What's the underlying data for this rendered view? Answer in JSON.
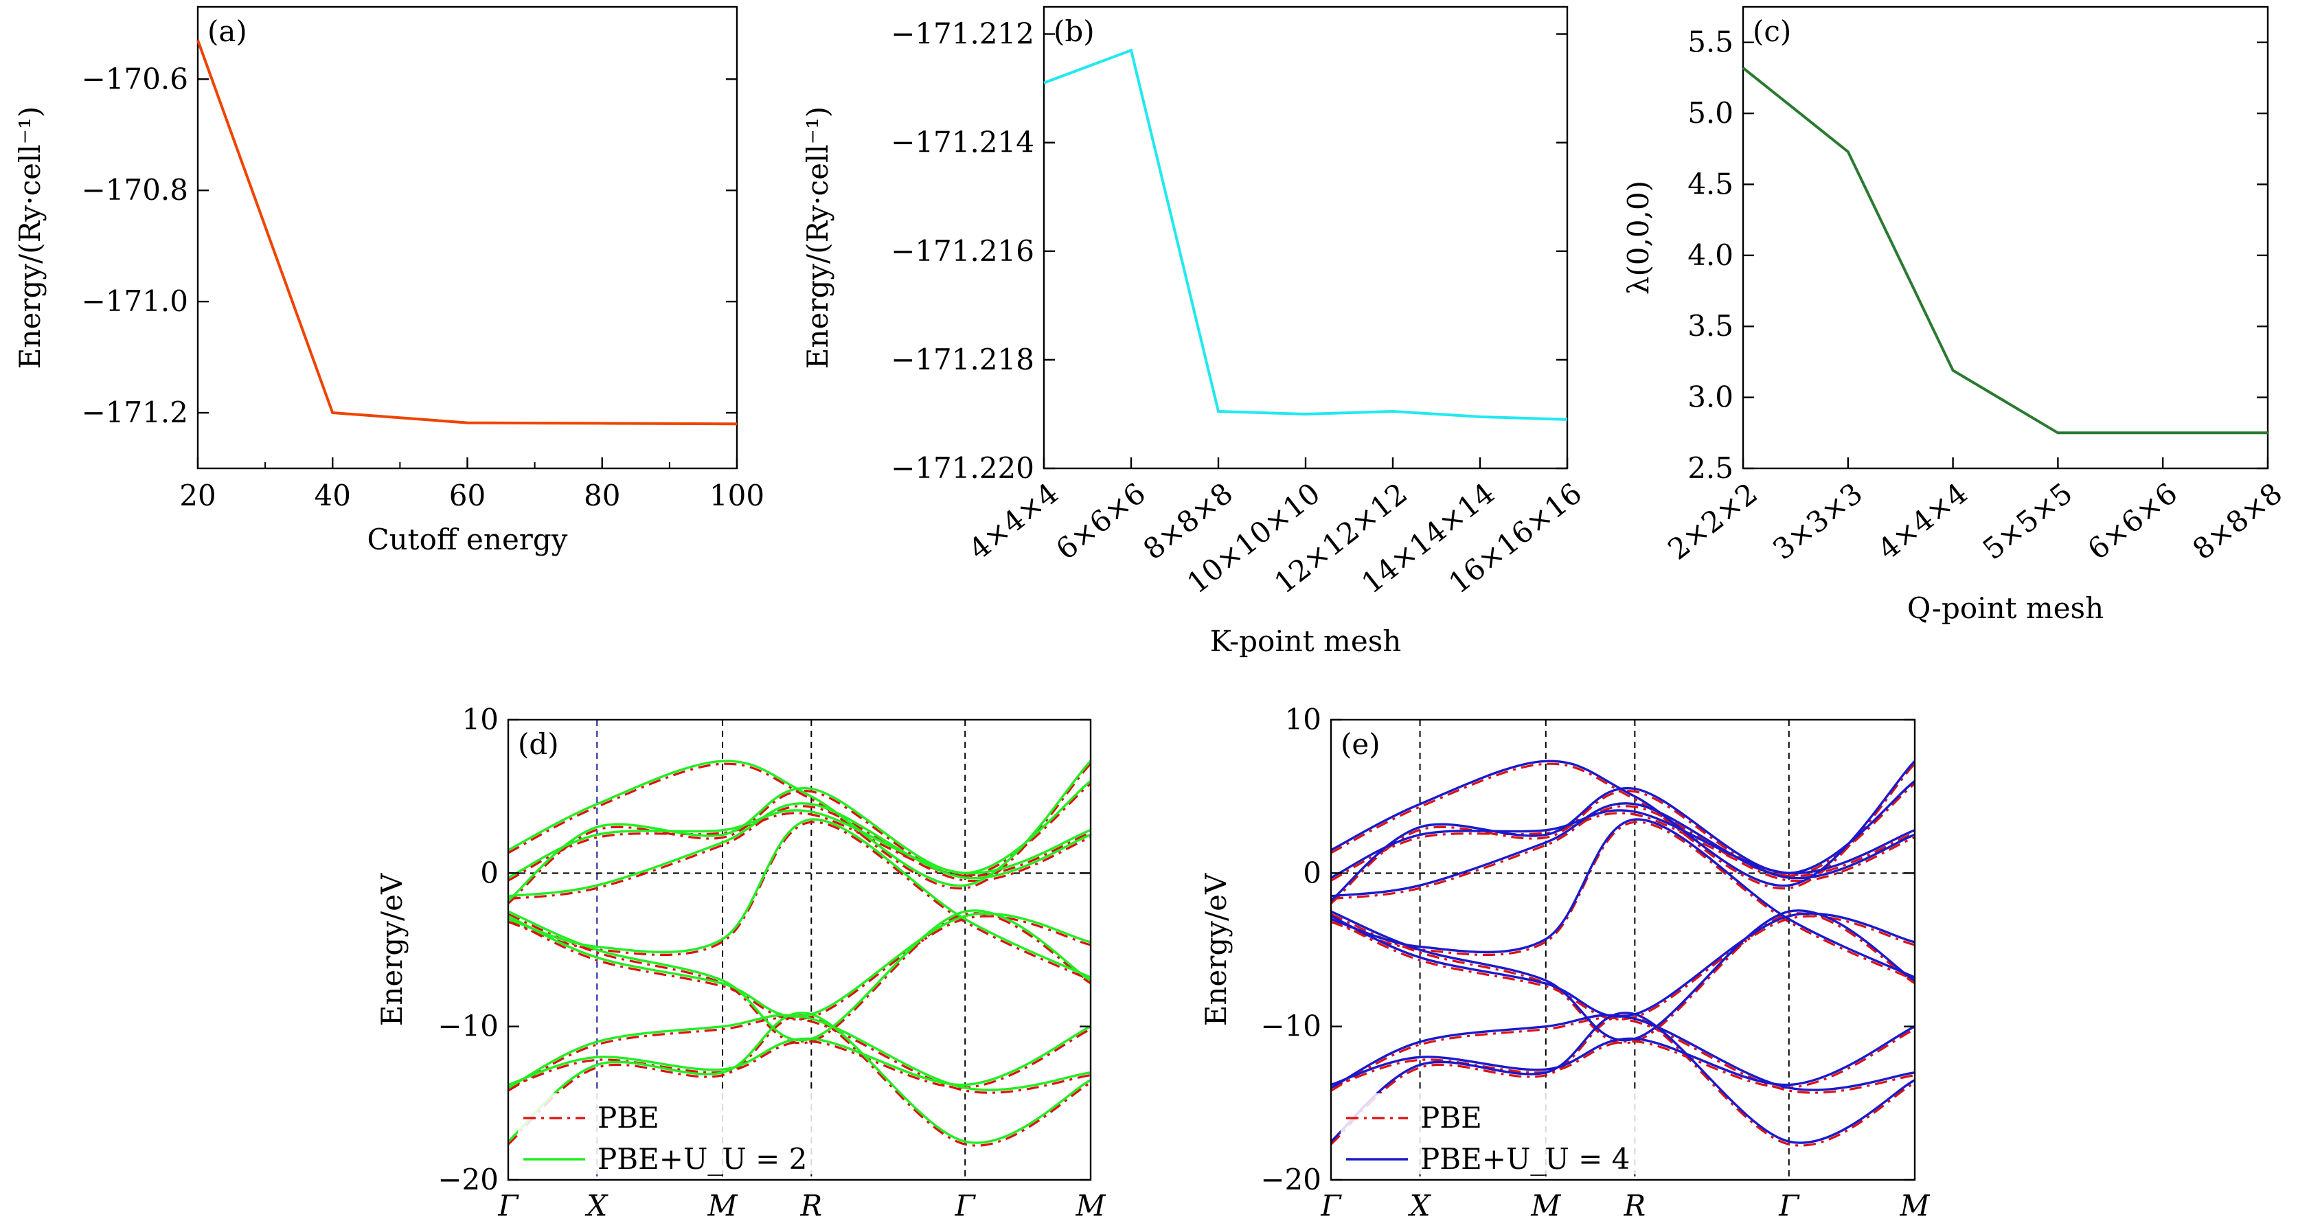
{
  "chart_data": [
    {
      "id": "a",
      "type": "line",
      "panel_label": "(a)",
      "xlabel": "Cutoff energy",
      "ylabel": "Energy/(Ry·cell⁻¹)",
      "xlim": [
        20,
        100
      ],
      "ylim": [
        -171.3,
        -170.47
      ],
      "xticks": [
        20,
        40,
        60,
        80,
        100
      ],
      "xticklabels": [
        "20",
        "40",
        "60",
        "80",
        "100"
      ],
      "yticks": [
        -170.6,
        -170.8,
        -171.0,
        -171.2
      ],
      "yticklabels": [
        "−170.6",
        "−170.8",
        "−171.0",
        "−171.2"
      ],
      "series": [
        {
          "x": [
            20,
            40,
            60,
            80,
            100
          ],
          "y": [
            -170.53,
            -171.2,
            -171.218,
            -171.219,
            -171.22
          ]
        }
      ],
      "colors": [
        "#ee4400"
      ]
    },
    {
      "id": "b",
      "type": "line",
      "panel_label": "(b)",
      "xlabel": "K-point mesh",
      "ylabel": "Energy/(Ry·cell⁻¹)",
      "ylim": [
        -171.22,
        -171.2115
      ],
      "categories": [
        "4×4×4",
        "6×6×6",
        "8×8×8",
        "10×10×10",
        "12×12×12",
        "14×14×14",
        "16×16×16"
      ],
      "yticks": [
        -171.212,
        -171.214,
        -171.216,
        -171.218,
        -171.22
      ],
      "yticklabels": [
        "−171.212",
        "−171.214",
        "−171.216",
        "−171.218",
        "−171.220"
      ],
      "series": [
        {
          "values": [
            -171.2129,
            -171.2123,
            -171.21895,
            -171.219,
            -171.21895,
            -171.21905,
            -171.2191
          ]
        }
      ],
      "colors": [
        "#22e8f0"
      ]
    },
    {
      "id": "c",
      "type": "line",
      "panel_label": "(c)",
      "xlabel": "Q-point mesh",
      "ylabel": "λ(0,0,0)",
      "ylim": [
        2.5,
        5.75
      ],
      "categories": [
        "2×2×2",
        "3×3×3",
        "4×4×4",
        "5×5×5",
        "6×6×6",
        "8×8×8"
      ],
      "yticks": [
        2.5,
        3.0,
        3.5,
        4.0,
        4.5,
        5.0,
        5.5
      ],
      "yticklabels": [
        "2.5",
        "3.0",
        "3.5",
        "4.0",
        "4.5",
        "5.0",
        "5.5"
      ],
      "series": [
        {
          "values": [
            5.32,
            4.73,
            3.19,
            2.75,
            2.75,
            2.75
          ]
        }
      ],
      "colors": [
        "#2b7a32"
      ]
    },
    {
      "id": "d",
      "type": "line",
      "panel_label": "(d)",
      "ylabel": "Energy/eV",
      "ylim": [
        -20,
        10
      ],
      "yticks": [
        10,
        0,
        -10,
        -20
      ],
      "yticklabels": [
        "10",
        "0",
        "−10",
        "−20"
      ],
      "kpoints": [
        "Γ",
        "X",
        "M",
        "R",
        "Γ",
        "M"
      ],
      "kpositions": [
        0,
        0.5,
        1.207,
        1.707,
        2.573,
        3.28
      ],
      "legend": [
        "PBE",
        "PBE+U_U = 2"
      ],
      "legend_position": "bottom-left",
      "colors": [
        "#dd1111",
        "#22ee22"
      ],
      "bands": [
        {
          "k": [
            0,
            0.5,
            1.207,
            1.707,
            2.573,
            3.28
          ],
          "E": [
            -17.5,
            -12.5,
            -13.0,
            -9.2,
            -17.5,
            -13.5
          ]
        },
        {
          "k": [
            0,
            0.5,
            1.207,
            1.707,
            2.573,
            3.28
          ],
          "E": [
            -14.0,
            -11.0,
            -10.0,
            -9.5,
            -14.0,
            -13.0
          ]
        },
        {
          "k": [
            0,
            0.5,
            1.207,
            1.707,
            2.573,
            3.28
          ],
          "E": [
            -13.8,
            -12.0,
            -12.8,
            -10.8,
            -13.8,
            -10.0
          ]
        },
        {
          "k": [
            0,
            0.5,
            1.207,
            1.707,
            2.573,
            3.28
          ],
          "E": [
            -2.5,
            -5.0,
            -7.0,
            -10.8,
            -2.5,
            -7.0
          ]
        },
        {
          "k": [
            0,
            0.5,
            1.207,
            1.707,
            2.573,
            3.28
          ],
          "E": [
            -2.8,
            -5.5,
            -7.2,
            -9.2,
            -2.8,
            -4.5
          ]
        },
        {
          "k": [
            0,
            0.5,
            1.207,
            1.707,
            2.573,
            3.28
          ],
          "E": [
            -3.0,
            -4.8,
            -4.3,
            3.5,
            -3.0,
            -6.8
          ]
        },
        {
          "k": [
            0,
            0.5,
            1.207,
            1.707,
            2.573,
            3.28
          ],
          "E": [
            -1.5,
            -0.8,
            2.0,
            4.5,
            -0.3,
            2.5
          ]
        },
        {
          "k": [
            0,
            0.5,
            1.207,
            1.707,
            2.573,
            3.28
          ],
          "E": [
            -0.3,
            2.5,
            2.8,
            4.0,
            0.0,
            2.8
          ]
        },
        {
          "k": [
            0,
            0.5,
            1.207,
            1.707,
            2.573,
            3.28
          ],
          "E": [
            1.5,
            4.5,
            7.3,
            5.0,
            -0.8,
            7.3
          ]
        },
        {
          "k": [
            0,
            0.5,
            1.207,
            1.707,
            2.573,
            3.28
          ],
          "E": [
            -1.8,
            3.0,
            2.5,
            5.5,
            0.0,
            6.0
          ]
        }
      ]
    },
    {
      "id": "e",
      "type": "line",
      "panel_label": "(e)",
      "ylabel": "Energy/eV",
      "ylim": [
        -20,
        10
      ],
      "yticks": [
        10,
        0,
        -10,
        -20
      ],
      "yticklabels": [
        "10",
        "0",
        "−10",
        "−20"
      ],
      "kpoints": [
        "Γ",
        "X",
        "M",
        "R",
        "Γ",
        "M"
      ],
      "kpositions": [
        0,
        0.5,
        1.207,
        1.707,
        2.573,
        3.28
      ],
      "legend": [
        "PBE",
        "PBE+U_U = 4"
      ],
      "legend_position": "bottom-left",
      "colors": [
        "#dd1111",
        "#1a1acc"
      ],
      "bands": [
        {
          "k": [
            0,
            0.5,
            1.207,
            1.707,
            2.573,
            3.28
          ],
          "E": [
            -17.5,
            -12.5,
            -13.0,
            -9.2,
            -17.5,
            -13.5
          ]
        },
        {
          "k": [
            0,
            0.5,
            1.207,
            1.707,
            2.573,
            3.28
          ],
          "E": [
            -14.0,
            -11.0,
            -10.0,
            -9.5,
            -14.0,
            -13.0
          ]
        },
        {
          "k": [
            0,
            0.5,
            1.207,
            1.707,
            2.573,
            3.28
          ],
          "E": [
            -13.8,
            -12.0,
            -12.8,
            -10.8,
            -13.8,
            -10.0
          ]
        },
        {
          "k": [
            0,
            0.5,
            1.207,
            1.707,
            2.573,
            3.28
          ],
          "E": [
            -2.5,
            -5.0,
            -7.0,
            -10.8,
            -2.5,
            -7.0
          ]
        },
        {
          "k": [
            0,
            0.5,
            1.207,
            1.707,
            2.573,
            3.28
          ],
          "E": [
            -2.8,
            -5.5,
            -7.2,
            -9.2,
            -2.8,
            -4.5
          ]
        },
        {
          "k": [
            0,
            0.5,
            1.207,
            1.707,
            2.573,
            3.28
          ],
          "E": [
            -3.0,
            -4.8,
            -4.3,
            3.5,
            -3.0,
            -6.8
          ]
        },
        {
          "k": [
            0,
            0.5,
            1.207,
            1.707,
            2.573,
            3.28
          ],
          "E": [
            -1.5,
            -0.8,
            2.0,
            4.5,
            -0.3,
            2.5
          ]
        },
        {
          "k": [
            0,
            0.5,
            1.207,
            1.707,
            2.573,
            3.28
          ],
          "E": [
            -0.3,
            2.5,
            2.8,
            4.0,
            0.0,
            2.8
          ]
        },
        {
          "k": [
            0,
            0.5,
            1.207,
            1.707,
            2.573,
            3.28
          ],
          "E": [
            1.5,
            4.5,
            7.3,
            5.0,
            -0.8,
            7.3
          ]
        },
        {
          "k": [
            0,
            0.5,
            1.207,
            1.707,
            2.573,
            3.28
          ],
          "E": [
            -1.8,
            3.0,
            2.5,
            5.5,
            0.0,
            6.0
          ]
        }
      ]
    }
  ]
}
